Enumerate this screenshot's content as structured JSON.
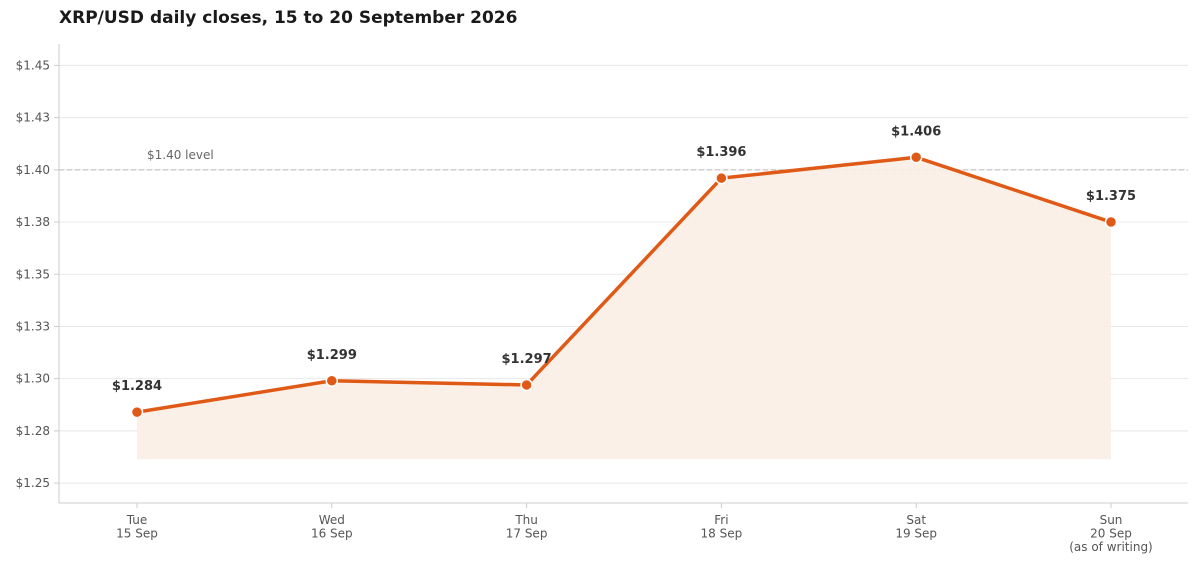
{
  "chart_data": {
    "type": "area",
    "title": "XRP/USD daily closes, 15 to 20 September 2026",
    "xlabel": "",
    "ylabel": "",
    "categories": [
      [
        "Tue",
        "15 Sep"
      ],
      [
        "Wed",
        "16 Sep"
      ],
      [
        "Thu",
        "17 Sep"
      ],
      [
        "Fri",
        "18 Sep"
      ],
      [
        "Sat",
        "19 Sep"
      ],
      [
        "Sun",
        "20 Sep",
        "(as of writing)"
      ]
    ],
    "series": [
      {
        "values": [
          1.284,
          1.299,
          1.297,
          1.396,
          1.406,
          1.375
        ],
        "labels": [
          "$1.284",
          "$1.299",
          "$1.297",
          "$1.396",
          "$1.406",
          "$1.375"
        ]
      }
    ],
    "ylim": [
      1.24,
      1.46
    ],
    "yticks": [
      1.25,
      1.275,
      1.3,
      1.325,
      1.35,
      1.375,
      1.4,
      1.425,
      1.45
    ],
    "ytick_labels": [
      "$1.25",
      "$1.28",
      "$1.30",
      "$1.33",
      "$1.35",
      "$1.38",
      "$1.40",
      "$1.43",
      "$1.45"
    ],
    "reference_line": {
      "value": 1.4,
      "label": "$1.40 level"
    },
    "grid": true,
    "legend": "none",
    "colors": {
      "line": "#e05a17",
      "fill": "#fbeee6",
      "grid": "#e8e8e8",
      "reference": "#bbbbbb",
      "axis": "#cccccc"
    }
  }
}
